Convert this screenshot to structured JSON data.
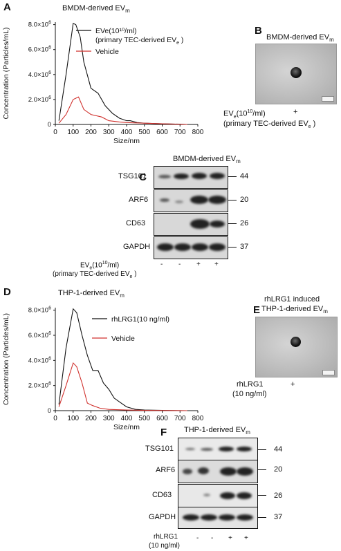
{
  "panels": {
    "A": {
      "letter": "A",
      "title_pre": "BMDM-derived EV",
      "title_sub": "m"
    },
    "B": {
      "letter": "B",
      "title_pre": "BMDM-derived EV",
      "title_sub": "m",
      "cond_label_pre": "EV",
      "cond_label_sub": "e",
      "cond_label_mid": "(10",
      "cond_label_sup": "10",
      "cond_label_post": "/ml)",
      "cond_label2_pre": "(primary TEC-derived EV",
      "cond_label2_sub": "e",
      "cond_label2_post": " )",
      "cond_value": "+"
    },
    "C": {
      "letter": "C",
      "title_pre": "BMDM-derived EV",
      "title_sub": "m",
      "rows": [
        {
          "label": "TSG101",
          "mw": "44"
        },
        {
          "label": "ARF6",
          "mw": "20"
        },
        {
          "label": "CD63",
          "mw": "26"
        },
        {
          "label": "GAPDH",
          "mw": "37"
        }
      ],
      "cond_pre": "EV",
      "cond_sub": "e",
      "cond_mid": "(10",
      "cond_sup": "10",
      "cond_post": "/ml)",
      "cond2_pre": "(primary TEC-derived EV",
      "cond2_sub": "e",
      "cond2_post": " )",
      "lanes": [
        "-",
        "-",
        "+",
        "+"
      ]
    },
    "D": {
      "letter": "D",
      "title_pre": "THP-1-derived EV",
      "title_sub": "m"
    },
    "E": {
      "letter": "E",
      "title_line1": "rhLRG1 induced",
      "title_line2_pre": "THP-1-derived EV",
      "title_line2_sub": "m",
      "cond_label": "rhLRG1",
      "cond_label2": "(10 ng/ml)",
      "cond_value": "+"
    },
    "F": {
      "letter": "F",
      "title_pre": "THP-1-derived EV",
      "title_sub": "m",
      "rows": [
        {
          "label": "TSG101",
          "mw": "44"
        },
        {
          "label": "ARF6",
          "mw": "20"
        },
        {
          "label": "CD63",
          "mw": "26"
        },
        {
          "label": "GAPDH",
          "mw": "37"
        }
      ],
      "cond": "rhLRG1",
      "cond2": "(10 ng/ml)",
      "lanes": [
        "-",
        "-",
        "+",
        "+"
      ]
    }
  },
  "chart_data": [
    {
      "type": "line",
      "panel": "A",
      "xlabel": "Size/nm",
      "ylabel": "Concentration (Particles/mL)",
      "xlim": [
        0,
        800
      ],
      "ylim": [
        0,
        8200000
      ],
      "x_ticks": [
        "0",
        "100",
        "200",
        "300",
        "400",
        "500",
        "600",
        "700",
        "800"
      ],
      "y_ticks": [
        {
          "base": "0",
          "exp": ""
        },
        {
          "base": "2.0×10",
          "exp": "6"
        },
        {
          "base": "4.0×10",
          "exp": "6"
        },
        {
          "base": "6.0×10",
          "exp": "6"
        },
        {
          "base": "8.0×10",
          "exp": "6"
        }
      ],
      "legend": [
        {
          "line1": "EVe(10¹⁰/ml)",
          "line2": "(primary TEC-derived EV",
          "line2_sub": "e",
          "line2_post": " )",
          "color": "#111111"
        },
        {
          "line1": "Vehicle",
          "line2": "",
          "line2_sub": "",
          "line2_post": "",
          "color": "#d0312d"
        }
      ],
      "series": [
        {
          "color": "#111111",
          "x": [
            20,
            60,
            100,
            115,
            140,
            160,
            200,
            240,
            280,
            320,
            360,
            400,
            420,
            460,
            500,
            600,
            700,
            740
          ],
          "y": [
            300000,
            4000000,
            8100000,
            8000000,
            7000000,
            5000000,
            2900000,
            2500000,
            1500000,
            900000,
            500000,
            300000,
            300000,
            150000,
            100000,
            50000,
            20000,
            0
          ]
        },
        {
          "color": "#d0312d",
          "x": [
            20,
            60,
            100,
            130,
            160,
            200,
            260,
            300,
            360,
            400,
            500,
            600,
            740
          ],
          "y": [
            100000,
            800000,
            2000000,
            2200000,
            1200000,
            800000,
            600000,
            300000,
            200000,
            150000,
            100000,
            50000,
            0
          ]
        }
      ]
    },
    {
      "type": "line",
      "panel": "D",
      "xlabel": "Size/nm",
      "ylabel": "Concentration (Particles/mL)",
      "xlim": [
        0,
        800
      ],
      "ylim": [
        0,
        8200000
      ],
      "x_ticks": [
        "0",
        "100",
        "200",
        "300",
        "400",
        "500",
        "600",
        "700",
        "800"
      ],
      "y_ticks": [
        {
          "base": "0",
          "exp": ""
        },
        {
          "base": "2.0×10",
          "exp": "6"
        },
        {
          "base": "4.0×10",
          "exp": "6"
        },
        {
          "base": "6.0×10",
          "exp": "6"
        },
        {
          "base": "8.0×10",
          "exp": "6"
        }
      ],
      "legend": [
        {
          "line1": "rhLRG1(10 ng/ml)",
          "line2": "",
          "line2_sub": "",
          "line2_post": "",
          "color": "#111111"
        },
        {
          "line1": "Vehicle",
          "line2": "",
          "line2_sub": "",
          "line2_post": "",
          "color": "#d0312d"
        }
      ],
      "series": [
        {
          "color": "#111111",
          "x": [
            20,
            60,
            100,
            120,
            150,
            180,
            210,
            240,
            270,
            300,
            330,
            360,
            400,
            450,
            500,
            600,
            740
          ],
          "y": [
            500000,
            5000000,
            8100000,
            7800000,
            6000000,
            4400000,
            3200000,
            3200000,
            2200000,
            1700000,
            1000000,
            700000,
            300000,
            100000,
            50000,
            20000,
            0
          ]
        },
        {
          "color": "#d0312d",
          "x": [
            20,
            60,
            100,
            120,
            150,
            180,
            210,
            250,
            300,
            400,
            500,
            600,
            740
          ],
          "y": [
            300000,
            2000000,
            3800000,
            3500000,
            2200000,
            600000,
            400000,
            200000,
            100000,
            50000,
            20000,
            10000,
            0
          ]
        }
      ]
    }
  ]
}
